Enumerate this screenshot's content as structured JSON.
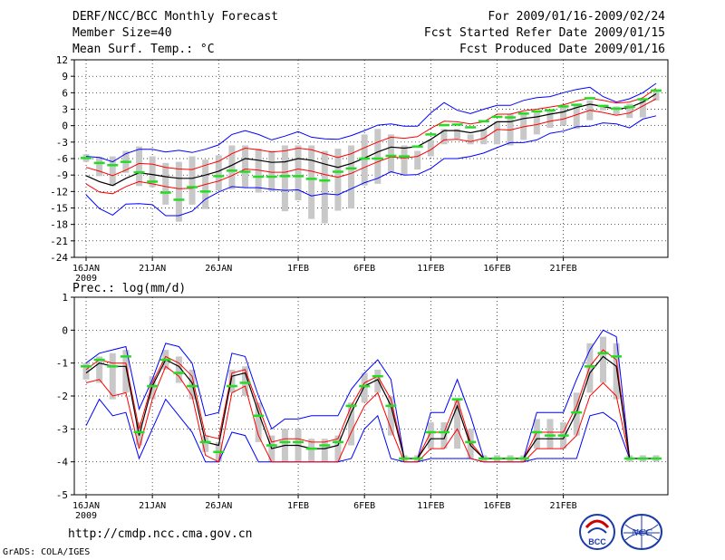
{
  "header": {
    "title": "DERF/NCC/BCC Monthly Forecast",
    "member_size": "Member Size=40",
    "variable": "Mean Surf. Temp.: °C",
    "period": "For 2009/01/16-2009/02/24",
    "started": "Fcst Started Refer Date 2009/01/15",
    "produced": "Fcst Produced Date 2009/01/16"
  },
  "footer": {
    "url": "http://cmdp.ncc.cma.gov.cn",
    "credit": "GrADS: COLA/IGES",
    "logo_bcc": "BCC",
    "logo_ncc": "NCC"
  },
  "colors": {
    "mean": "#000000",
    "spread": "#ff0000",
    "extremes": "#0000ff",
    "median_tick": "#22dd22",
    "box": "#c8c8c8"
  },
  "chart_data": [
    {
      "type": "ensemble",
      "title": "Mean Surf. Temp.: °C",
      "ylim": [
        -24,
        12
      ],
      "yticks": [
        12,
        9,
        6,
        3,
        0,
        -3,
        -6,
        -9,
        -12,
        -15,
        -18,
        -21,
        -24
      ],
      "xticks": [
        "16JAN",
        "21JAN",
        "26JAN",
        "1FEB",
        "6FEB",
        "11FEB",
        "16FEB",
        "21FEB"
      ],
      "xtick_days": [
        1,
        6,
        11,
        17,
        22,
        27,
        32,
        37
      ],
      "year_label": "2009",
      "mean": [
        -9.1,
        -10.2,
        -10.9,
        -9.6,
        -8.6,
        -8.9,
        -9.3,
        -9.6,
        -9.6,
        -9.0,
        -8.3,
        -7.2,
        -6.0,
        -6.3,
        -6.7,
        -6.6,
        -6.0,
        -6.3,
        -7.0,
        -7.6,
        -6.9,
        -5.9,
        -4.8,
        -3.9,
        -4.1,
        -3.8,
        -2.5,
        -0.9,
        -0.9,
        -1.3,
        -0.8,
        0.7,
        0.7,
        1.3,
        1.6,
        2.1,
        2.5,
        3.3,
        3.9,
        3.5,
        3.0,
        3.3,
        4.3,
        5.8
      ],
      "spread_upper": [
        -7.6,
        -8.3,
        -9.1,
        -8.1,
        -6.9,
        -7.0,
        -7.6,
        -7.9,
        -8.0,
        -7.2,
        -6.5,
        -5.1,
        -4.1,
        -4.4,
        -4.8,
        -4.6,
        -4.1,
        -4.4,
        -5.1,
        -5.8,
        -5.1,
        -4.0,
        -3.0,
        -2.1,
        -2.3,
        -2.0,
        -0.5,
        0.8,
        0.7,
        0.3,
        0.7,
        2.1,
        2.1,
        2.7,
        3.0,
        3.4,
        3.8,
        4.5,
        5.0,
        4.6,
        4.1,
        4.3,
        5.1,
        6.8
      ],
      "spread_lower": [
        -10.6,
        -12.1,
        -12.4,
        -11.1,
        -10.2,
        -10.6,
        -11.1,
        -11.5,
        -11.4,
        -10.7,
        -10.1,
        -9.1,
        -7.9,
        -8.1,
        -8.5,
        -8.5,
        -7.9,
        -8.3,
        -8.9,
        -9.4,
        -8.7,
        -7.6,
        -6.6,
        -5.7,
        -5.9,
        -5.6,
        -4.4,
        -2.6,
        -2.5,
        -2.9,
        -2.3,
        -0.7,
        -0.8,
        -0.2,
        0.2,
        0.8,
        1.2,
        2.0,
        2.8,
        2.4,
        1.9,
        2.3,
        3.6,
        4.9
      ],
      "max": [
        -5.6,
        -5.8,
        -6.6,
        -5.1,
        -4.3,
        -4.3,
        -4.8,
        -4.5,
        -4.9,
        -4.3,
        -3.5,
        -1.6,
        -0.9,
        -1.6,
        -2.6,
        -1.9,
        -1.1,
        -2.1,
        -2.4,
        -2.5,
        -1.8,
        -0.9,
        0.1,
        0.3,
        -0.1,
        -0.1,
        2.3,
        4.2,
        2.8,
        2.2,
        3.0,
        3.7,
        3.7,
        4.6,
        5.1,
        5.3,
        6.0,
        6.6,
        7.0,
        5.3,
        4.3,
        4.9,
        6.0,
        7.7
      ],
      "min": [
        -12.6,
        -15.1,
        -16.3,
        -14.3,
        -14.2,
        -14.4,
        -16.4,
        -16.4,
        -15.6,
        -13.4,
        -12.1,
        -11.1,
        -11.3,
        -11.3,
        -11.6,
        -11.8,
        -11.7,
        -12.8,
        -12.4,
        -12.6,
        -11.5,
        -10.4,
        -9.6,
        -8.4,
        -9.0,
        -8.9,
        -7.8,
        -6.0,
        -6.0,
        -5.6,
        -5.0,
        -4.0,
        -3.1,
        -3.1,
        -2.6,
        -1.4,
        -1.0,
        -0.2,
        -0.1,
        0.5,
        0.3,
        -0.4,
        1.2,
        1.8
      ],
      "box_top": [
        -5.2,
        -5.7,
        -5.6,
        -4.6,
        -3.8,
        -5.6,
        -6.8,
        -6.6,
        -5.6,
        -6.2,
        -5.4,
        -3.6,
        -3.6,
        -4.2,
        -4.6,
        -3.6,
        -3.6,
        -3.6,
        -4.6,
        -4.2,
        -3.6,
        -1.6,
        -0.6,
        -1.6,
        -3.6,
        -4.6,
        -2.6,
        -0.6,
        -0.6,
        -1.6,
        -0.6,
        0.8,
        2.2,
        2.5,
        2.6,
        3.0,
        3.6,
        4.0,
        4.6,
        3.6,
        3.5,
        4.0,
        4.6,
        6.6
      ],
      "box_bottom": [
        -6.6,
        -9.2,
        -11.0,
        -8.6,
        -11.0,
        -11.2,
        -14.4,
        -17.5,
        -14.4,
        -15.2,
        -11.8,
        -11.6,
        -11.2,
        -12.2,
        -12.0,
        -15.6,
        -13.6,
        -17.0,
        -17.8,
        -15.5,
        -15.1,
        -10.9,
        -10.6,
        -8.6,
        -8.9,
        -8.0,
        -5.6,
        -3.4,
        -2.4,
        -3.4,
        -3.4,
        -3.4,
        -3.6,
        -2.6,
        -1.6,
        -0.4,
        0.0,
        -0.6,
        1.0,
        2.8,
        2.0,
        1.4,
        1.5,
        4.6
      ],
      "median": [
        -5.9,
        -6.8,
        -7.2,
        -6.6,
        -8.5,
        -10.2,
        -12.2,
        -13.5,
        -11.2,
        -12.0,
        -9.2,
        -8.2,
        -8.4,
        -9.3,
        -9.3,
        -9.2,
        -9.2,
        -9.7,
        -10.0,
        -8.4,
        -7.8,
        -6.0,
        -6.0,
        -5.5,
        -5.6,
        -3.8,
        -1.6,
        0.1,
        0.2,
        -0.3,
        0.8,
        1.6,
        1.5,
        2.2,
        2.6,
        2.8,
        3.5,
        3.8,
        5.0,
        3.6,
        3.1,
        3.4,
        4.8,
        6.4
      ]
    },
    {
      "type": "ensemble",
      "title": "Prec.: log(mm/d)",
      "ylim": [
        -5,
        1
      ],
      "yticks": [
        1,
        0,
        -1,
        -2,
        -3,
        -4,
        -5
      ],
      "xticks": [
        "16JAN",
        "21JAN",
        "26JAN",
        "1FEB",
        "6FEB",
        "11FEB",
        "16FEB",
        "21FEB"
      ],
      "xtick_days": [
        1,
        6,
        11,
        17,
        22,
        27,
        32,
        37
      ],
      "year_label": "2009",
      "mean": [
        -1.3,
        -1.0,
        -1.1,
        -1.1,
        -3.2,
        -1.7,
        -0.9,
        -1.1,
        -1.6,
        -3.4,
        -3.5,
        -1.4,
        -1.3,
        -2.5,
        -3.6,
        -3.5,
        -3.5,
        -3.6,
        -3.6,
        -3.5,
        -2.5,
        -1.7,
        -1.5,
        -2.3,
        -3.9,
        -3.9,
        -3.3,
        -3.3,
        -2.3,
        -3.5,
        -3.9,
        -3.9,
        -3.9,
        -3.9,
        -3.3,
        -3.3,
        -3.3,
        -2.5,
        -1.3,
        -0.8,
        -1.1,
        -3.9,
        -3.9,
        -3.9
      ],
      "spread_upper": [
        -1.2,
        -0.9,
        -1.0,
        -1.0,
        -3.0,
        -1.6,
        -0.8,
        -1.0,
        -1.4,
        -3.2,
        -3.3,
        -1.3,
        -1.2,
        -2.3,
        -3.4,
        -3.3,
        -3.3,
        -3.4,
        -3.4,
        -3.3,
        -2.3,
        -1.6,
        -1.4,
        -2.1,
        -3.9,
        -3.9,
        -3.1,
        -3.1,
        -2.1,
        -3.4,
        -3.9,
        -3.9,
        -3.9,
        -3.9,
        -3.1,
        -3.1,
        -3.1,
        -2.3,
        -1.1,
        -0.6,
        -0.9,
        -3.9,
        -3.9,
        -3.9
      ],
      "spread_lower": [
        -1.6,
        -1.5,
        -2.0,
        -1.9,
        -3.6,
        -2.1,
        -1.1,
        -1.4,
        -2.0,
        -3.8,
        -4.0,
        -1.9,
        -1.7,
        -3.2,
        -4.0,
        -4.0,
        -4.0,
        -4.0,
        -4.0,
        -4.0,
        -3.1,
        -2.3,
        -1.9,
        -3.0,
        -4.0,
        -4.0,
        -3.6,
        -3.6,
        -3.0,
        -3.9,
        -4.0,
        -4.0,
        -4.0,
        -4.0,
        -3.6,
        -3.6,
        -3.6,
        -3.2,
        -2.0,
        -1.6,
        -2.0,
        -3.9,
        -3.9,
        -3.9
      ],
      "max": [
        -1.0,
        -0.7,
        -0.6,
        -0.5,
        -2.4,
        -1.5,
        -0.4,
        -0.5,
        -1.0,
        -2.6,
        -2.5,
        -0.7,
        -0.8,
        -2.0,
        -3.0,
        -2.7,
        -2.7,
        -2.6,
        -2.6,
        -2.6,
        -1.8,
        -1.3,
        -0.9,
        -1.5,
        -3.9,
        -3.9,
        -2.5,
        -2.5,
        -1.5,
        -2.6,
        -3.9,
        -3.9,
        -3.9,
        -3.9,
        -2.5,
        -2.5,
        -2.5,
        -1.5,
        -0.6,
        0.0,
        -0.2,
        -3.9,
        -3.9,
        -3.9
      ],
      "min": [
        -2.9,
        -2.1,
        -2.6,
        -2.5,
        -3.9,
        -3.0,
        -2.1,
        -2.6,
        -3.1,
        -4.0,
        -4.0,
        -3.1,
        -3.2,
        -4.0,
        -4.0,
        -4.0,
        -4.0,
        -4.0,
        -4.0,
        -4.0,
        -3.9,
        -3.0,
        -2.6,
        -3.9,
        -4.0,
        -4.0,
        -3.9,
        -3.9,
        -3.9,
        -3.9,
        -4.0,
        -4.0,
        -4.0,
        -4.0,
        -3.9,
        -3.9,
        -3.9,
        -3.9,
        -2.6,
        -2.5,
        -2.8,
        -3.9,
        -3.9,
        -3.9
      ],
      "box_top": [
        -1.0,
        -0.8,
        -0.7,
        -0.6,
        -2.8,
        -1.4,
        -0.6,
        -0.8,
        -1.2,
        -3.2,
        -3.4,
        -1.2,
        -1.1,
        -2.2,
        -3.2,
        -3.0,
        -3.0,
        -3.3,
        -3.3,
        -3.2,
        -2.2,
        -1.3,
        -1.2,
        -2.0,
        -3.8,
        -3.8,
        -2.8,
        -2.8,
        -2.1,
        -3.0,
        -3.8,
        -3.8,
        -3.8,
        -3.8,
        -2.7,
        -2.7,
        -2.8,
        -1.9,
        -0.4,
        -0.2,
        -0.4,
        -3.8,
        -3.8,
        -3.8
      ],
      "box_bottom": [
        -1.5,
        -1.6,
        -2.1,
        -1.9,
        -3.5,
        -2.1,
        -1.2,
        -1.6,
        -2.1,
        -3.7,
        -4.0,
        -1.9,
        -2.0,
        -3.4,
        -4.0,
        -4.0,
        -4.0,
        -4.0,
        -4.0,
        -4.0,
        -3.5,
        -2.2,
        -1.9,
        -3.2,
        -4.0,
        -4.0,
        -3.6,
        -3.6,
        -3.6,
        -3.9,
        -4.0,
        -4.0,
        -4.0,
        -4.0,
        -3.6,
        -3.6,
        -3.6,
        -3.2,
        -1.9,
        -1.6,
        -2.1,
        -4.0,
        -4.0,
        -4.0
      ],
      "median": [
        -1.1,
        -0.9,
        -1.1,
        -0.8,
        -3.1,
        -1.7,
        -0.9,
        -1.3,
        -1.7,
        -3.4,
        -3.7,
        -1.7,
        -1.6,
        -2.6,
        -3.5,
        -3.4,
        -3.4,
        -3.6,
        -3.5,
        -3.4,
        -2.3,
        -1.7,
        -1.4,
        -2.3,
        -3.9,
        -3.9,
        -3.1,
        -3.1,
        -2.1,
        -3.4,
        -3.9,
        -3.9,
        -3.9,
        -3.9,
        -3.1,
        -3.2,
        -3.2,
        -2.5,
        -1.1,
        -0.7,
        -0.8,
        -3.9,
        -3.9,
        -3.9
      ]
    }
  ]
}
